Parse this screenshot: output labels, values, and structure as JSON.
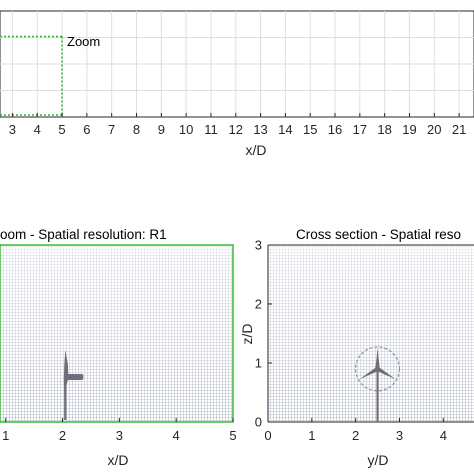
{
  "chart_data": [
    {
      "type": "mesh",
      "panel": "overview",
      "title": "",
      "xlabel": "x/D",
      "ylabel": "",
      "xlim": [
        2.5,
        21.6
      ],
      "x_ticks": [
        3,
        4,
        5,
        6,
        7,
        8,
        9,
        10,
        11,
        12,
        13,
        14,
        15,
        16,
        17,
        18,
        19,
        20,
        21
      ],
      "grid": true,
      "annotations": [
        {
          "text": "Zoom",
          "x_end": 5,
          "color": "#2bb52b",
          "style": "dotted-box"
        }
      ]
    },
    {
      "type": "mesh",
      "panel": "zoom",
      "title": "oom - Spatial resolution: R1",
      "xlabel": "x/D",
      "ylabel": "",
      "xlim": [
        0.9,
        5.0
      ],
      "x_ticks": [
        1,
        2,
        3,
        4,
        5
      ],
      "frame_color": "#2bb52b",
      "turbine": {
        "type": "side-view",
        "x": 2.05
      },
      "grid": true
    },
    {
      "type": "mesh",
      "panel": "cross-section",
      "title": "Cross section - Spatial reso",
      "xlabel": "y/D",
      "ylabel": "z/D",
      "xlim": [
        0,
        4.7
      ],
      "ylim": [
        0,
        3
      ],
      "x_ticks": [
        0,
        1,
        2,
        3,
        4
      ],
      "y_ticks": [
        0,
        1,
        2,
        3
      ],
      "turbine": {
        "type": "rotor-disk",
        "y": 2.5,
        "z": 0.9,
        "radius": 0.5
      },
      "grid": true
    }
  ],
  "colors": {
    "mesh_top": "#c8cfdd",
    "mesh_bottom": "#6b7390",
    "zoom_green": "#2bb52b",
    "turbine": "#6e6e7a",
    "axis": "#262626"
  }
}
